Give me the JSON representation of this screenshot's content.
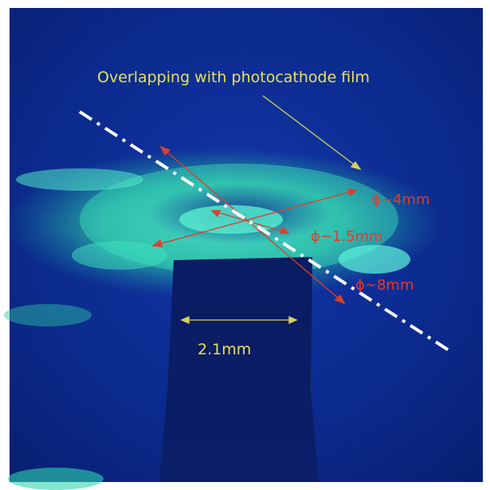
{
  "annotations": {
    "overlap_note": "Overlapping with photocathode film",
    "phi_4": "ϕ~4mm",
    "phi_1_5": "ϕ~1.5mm",
    "phi_8": "ϕ~8mm",
    "width_2_1": "2.1mm"
  },
  "colors": {
    "background_blue": "#0a2a8a",
    "glow_green": "#36e6b0",
    "label_yellow": "#e8e25a",
    "label_red": "#e53a2c",
    "dashed_line": "#ffffff"
  }
}
